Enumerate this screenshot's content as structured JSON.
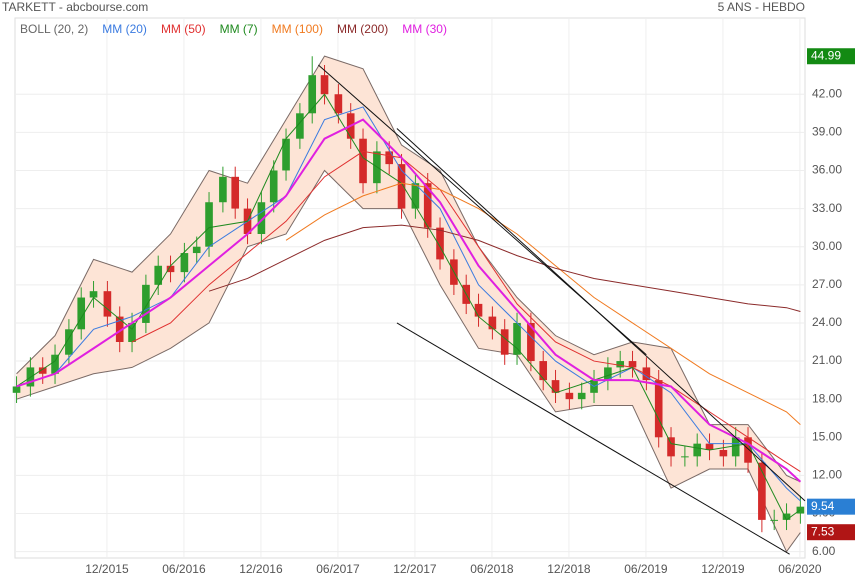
{
  "chart_data": {
    "type": "candlestick",
    "title": "TARKETT - abcbourse.com",
    "subtitle": "5 ANS - HEBDO",
    "xlim": [
      2015.32,
      2020.45
    ],
    "ylim": [
      5.5,
      48.0
    ],
    "grid": true,
    "xticks": [
      {
        "value": 2015.917,
        "label": "12/2015"
      },
      {
        "value": 2016.417,
        "label": "06/2016"
      },
      {
        "value": 2016.917,
        "label": "12/2016"
      },
      {
        "value": 2017.417,
        "label": "06/2017"
      },
      {
        "value": 2017.917,
        "label": "12/2017"
      },
      {
        "value": 2018.417,
        "label": "06/2018"
      },
      {
        "value": 2018.917,
        "label": "12/2018"
      },
      {
        "value": 2019.417,
        "label": "06/2019"
      },
      {
        "value": 2019.917,
        "label": "12/2019"
      },
      {
        "value": 2020.417,
        "label": "06/2020"
      }
    ],
    "yticks": [
      {
        "value": 6,
        "label": "6.00"
      },
      {
        "value": 9,
        "label": "9.00"
      },
      {
        "value": 12,
        "label": "12.00"
      },
      {
        "value": 15,
        "label": "15.00"
      },
      {
        "value": 18,
        "label": "18.00"
      },
      {
        "value": 21,
        "label": "21.00"
      },
      {
        "value": 24,
        "label": "24.00"
      },
      {
        "value": 27,
        "label": "27.00"
      },
      {
        "value": 30,
        "label": "30.00"
      },
      {
        "value": 33,
        "label": "33.00"
      },
      {
        "value": 36,
        "label": "36.00"
      },
      {
        "value": 39,
        "label": "39.00"
      },
      {
        "value": 42,
        "label": "42.00"
      }
    ],
    "up_color": "#2e9e2e",
    "down_color": "#d42a2a",
    "x": [
      2015.33,
      2015.42,
      2015.5,
      2015.58,
      2015.67,
      2015.75,
      2015.83,
      2015.92,
      2016.0,
      2016.08,
      2016.17,
      2016.25,
      2016.33,
      2016.42,
      2016.5,
      2016.58,
      2016.67,
      2016.75,
      2016.83,
      2016.92,
      2017.0,
      2017.08,
      2017.17,
      2017.25,
      2017.33,
      2017.42,
      2017.5,
      2017.58,
      2017.67,
      2017.75,
      2017.83,
      2017.92,
      2018.0,
      2018.08,
      2018.17,
      2018.25,
      2018.33,
      2018.42,
      2018.5,
      2018.58,
      2018.67,
      2018.75,
      2018.83,
      2018.92,
      2019.0,
      2019.08,
      2019.17,
      2019.25,
      2019.33,
      2019.42,
      2019.5,
      2019.58,
      2019.67,
      2019.75,
      2019.83,
      2019.92,
      2020.0,
      2020.08,
      2020.17,
      2020.25,
      2020.33,
      2020.42
    ],
    "open": [
      18.5,
      19.0,
      20.5,
      20.0,
      21.5,
      23.5,
      26.0,
      26.5,
      24.5,
      22.5,
      24.0,
      27.0,
      28.5,
      28.0,
      29.5,
      30.0,
      33.5,
      35.5,
      33.0,
      31.0,
      33.5,
      36.0,
      38.5,
      40.5,
      43.5,
      42.0,
      40.5,
      38.5,
      35.0,
      37.5,
      36.5,
      33.0,
      35.0,
      31.5,
      29.0,
      27.0,
      25.5,
      24.5,
      23.5,
      21.5,
      24.0,
      21.0,
      19.5,
      18.5,
      18.0,
      18.5,
      19.5,
      20.5,
      21.0,
      20.5,
      19.5,
      15.0,
      13.5,
      13.5,
      14.5,
      14.0,
      13.5,
      15.0,
      13.0,
      8.5,
      8.5,
      9.0
    ],
    "high": [
      19.8,
      21.3,
      21.3,
      22.3,
      24.3,
      26.8,
      27.3,
      27.3,
      25.3,
      24.8,
      27.8,
      29.3,
      29.3,
      30.3,
      30.8,
      34.3,
      36.3,
      36.3,
      33.8,
      34.3,
      36.8,
      39.3,
      41.3,
      44.99,
      44.3,
      42.8,
      41.3,
      39.3,
      38.3,
      38.3,
      37.3,
      35.8,
      35.8,
      32.3,
      29.8,
      27.8,
      26.3,
      25.3,
      24.3,
      24.8,
      24.8,
      21.8,
      20.3,
      19.3,
      19.3,
      20.3,
      21.3,
      21.8,
      21.8,
      21.3,
      20.3,
      15.8,
      14.3,
      15.3,
      15.3,
      14.8,
      15.8,
      15.8,
      13.8,
      9.3,
      9.8,
      10.4
    ],
    "low": [
      17.7,
      18.2,
      19.2,
      19.2,
      20.7,
      22.7,
      25.2,
      23.7,
      21.7,
      21.7,
      23.2,
      26.2,
      27.2,
      27.2,
      28.7,
      29.2,
      32.7,
      32.2,
      30.2,
      30.2,
      32.7,
      35.2,
      37.7,
      39.7,
      41.2,
      39.7,
      37.7,
      34.2,
      34.2,
      35.7,
      32.2,
      32.2,
      30.7,
      28.2,
      26.2,
      24.7,
      23.7,
      22.7,
      20.7,
      20.7,
      20.2,
      18.7,
      17.7,
      17.2,
      17.2,
      17.7,
      18.7,
      19.7,
      19.7,
      18.7,
      14.2,
      12.7,
      12.7,
      12.7,
      13.2,
      12.7,
      12.7,
      12.2,
      7.53,
      7.7,
      7.7,
      8.2
    ],
    "close": [
      19.0,
      20.5,
      20.0,
      21.5,
      23.5,
      26.0,
      26.5,
      24.5,
      22.5,
      24.0,
      27.0,
      28.5,
      28.0,
      29.5,
      30.0,
      33.5,
      35.5,
      33.0,
      31.0,
      33.5,
      36.0,
      38.5,
      40.5,
      43.5,
      42.0,
      40.5,
      38.5,
      35.0,
      37.5,
      36.5,
      33.0,
      35.0,
      31.5,
      29.0,
      27.0,
      25.5,
      24.5,
      23.5,
      21.5,
      24.0,
      21.0,
      19.5,
      18.5,
      18.0,
      18.5,
      19.5,
      20.5,
      21.0,
      20.5,
      19.5,
      15.0,
      13.5,
      13.5,
      14.5,
      14.0,
      13.5,
      15.0,
      13.0,
      8.5,
      8.5,
      9.0,
      9.54
    ],
    "bollinger": {
      "name": "BOLL (20, 2)",
      "color": "#7a6a66",
      "fill": "#fde4d6",
      "x": [
        2015.33,
        2015.58,
        2015.83,
        2016.08,
        2016.33,
        2016.58,
        2016.83,
        2017.08,
        2017.33,
        2017.58,
        2017.83,
        2018.08,
        2018.33,
        2018.58,
        2018.83,
        2019.08,
        2019.33,
        2019.58,
        2019.83,
        2020.08,
        2020.33,
        2020.42
      ],
      "upper": [
        20,
        23,
        29,
        28,
        31,
        36,
        35,
        40,
        45,
        44,
        38,
        36,
        30,
        26,
        23,
        21.5,
        22.5,
        22,
        16,
        16,
        12,
        11.5
      ],
      "lower": [
        18,
        19,
        20,
        20.5,
        22,
        24,
        30,
        31,
        36,
        33,
        33,
        27,
        22,
        21.5,
        17,
        17.5,
        17.5,
        11,
        12.5,
        12.5,
        6,
        7.5
      ]
    },
    "series": [
      {
        "name": "MM (20)",
        "color": "#3b7be0",
        "x": [
          2015.33,
          2015.58,
          2015.83,
          2016.08,
          2016.33,
          2016.58,
          2016.83,
          2017.08,
          2017.33,
          2017.58,
          2017.83,
          2018.08,
          2018.33,
          2018.58,
          2018.83,
          2019.08,
          2019.33,
          2019.58,
          2019.83,
          2020.08,
          2020.33,
          2020.42
        ],
        "values": [
          19,
          20,
          23.5,
          24.5,
          26,
          30,
          32,
          34,
          40,
          41,
          36,
          33,
          27,
          24,
          21,
          19,
          20.5,
          18.5,
          14.5,
          14.5,
          11,
          10
        ]
      },
      {
        "name": "MM (50)",
        "color": "#e03030",
        "x": [
          2016.08,
          2016.33,
          2016.58,
          2016.83,
          2017.08,
          2017.33,
          2017.58,
          2017.83,
          2018.08,
          2018.33,
          2018.58,
          2018.83,
          2019.08,
          2019.33,
          2019.58,
          2019.83,
          2020.08,
          2020.33,
          2020.42
        ],
        "values": [
          22.5,
          24,
          27,
          29.5,
          32,
          35.5,
          37.5,
          37,
          34.5,
          30,
          25.5,
          22.5,
          21,
          20.5,
          19,
          17,
          15,
          13,
          12.3
        ]
      },
      {
        "name": "MM (7)",
        "color": "#1f8a1f",
        "x": [
          2015.33,
          2015.58,
          2015.83,
          2016.08,
          2016.33,
          2016.58,
          2016.83,
          2017.08,
          2017.33,
          2017.58,
          2017.83,
          2018.08,
          2018.33,
          2018.58,
          2018.83,
          2019.08,
          2019.33,
          2019.58,
          2019.83,
          2020.08,
          2020.33,
          2020.42
        ],
        "values": [
          19,
          21,
          26,
          23.5,
          28.5,
          31.5,
          32,
          38.5,
          42,
          37,
          35,
          30,
          24.5,
          22,
          18.5,
          19.5,
          20.5,
          14.5,
          14,
          14.5,
          8.5,
          9.3
        ]
      },
      {
        "name": "MM (100)",
        "color": "#f07a20",
        "x": [
          2017.08,
          2017.33,
          2017.58,
          2017.83,
          2018.08,
          2018.33,
          2018.58,
          2018.83,
          2019.08,
          2019.33,
          2019.58,
          2019.83,
          2020.08,
          2020.33,
          2020.42
        ],
        "values": [
          30.5,
          32.5,
          34,
          35,
          34.5,
          33,
          31,
          28.5,
          26,
          24,
          22,
          20,
          18.5,
          17,
          16
        ]
      },
      {
        "name": "MM (200)",
        "color": "#8b2a2a",
        "x": [
          2016.58,
          2016.83,
          2017.08,
          2017.33,
          2017.58,
          2017.83,
          2018.08,
          2018.33,
          2018.58,
          2018.83,
          2019.08,
          2019.33,
          2019.58,
          2019.83,
          2020.08,
          2020.33,
          2020.42
        ],
        "values": [
          26.5,
          27.5,
          29,
          30.5,
          31.5,
          31.7,
          31.3,
          30.5,
          29.3,
          28.3,
          27.5,
          27,
          26.5,
          26,
          25.5,
          25.2,
          24.9
        ]
      },
      {
        "name": "MM (30)",
        "color": "#e020e0",
        "x": [
          2015.33,
          2015.58,
          2015.83,
          2016.08,
          2016.33,
          2016.58,
          2016.83,
          2017.08,
          2017.33,
          2017.58,
          2017.83,
          2018.08,
          2018.33,
          2018.58,
          2018.83,
          2019.08,
          2019.33,
          2019.58,
          2019.83,
          2020.08,
          2020.33,
          2020.42
        ],
        "values": [
          19,
          20,
          22,
          24,
          26,
          28.5,
          31,
          34,
          38.5,
          40,
          37,
          33.5,
          28.5,
          25,
          21.5,
          19.5,
          19.5,
          19,
          16,
          14.5,
          12.5,
          11.5
        ]
      }
    ],
    "trendlines": [
      {
        "color": "#111111",
        "x": [
          2017.29,
          2019.42
        ],
        "values": [
          44.3,
          21.5
        ]
      },
      {
        "color": "#111111",
        "x": [
          2017.8,
          2020.45
        ],
        "values": [
          39.3,
          10
        ]
      },
      {
        "color": "#111111",
        "x": [
          2017.8,
          2020.35
        ],
        "values": [
          24.0,
          5.8
        ]
      }
    ],
    "price_labels": [
      {
        "value": 44.99,
        "color": "#138a13"
      },
      {
        "value": 9.54,
        "color": "#2a7fd4"
      },
      {
        "value": 7.53,
        "color": "#b01515"
      }
    ]
  }
}
